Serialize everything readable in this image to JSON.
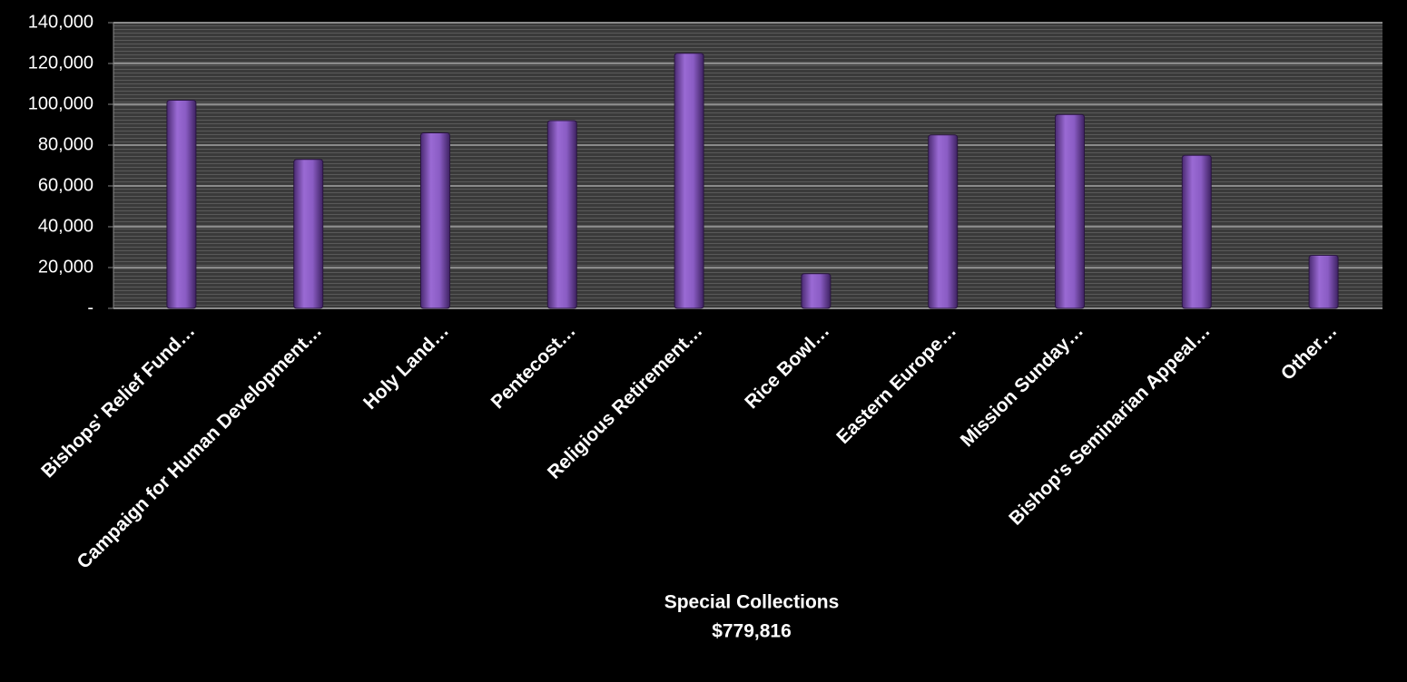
{
  "chart_data": {
    "type": "bar",
    "categories": [
      "Bishops' Relief Fund…",
      "Campaign for Human Development…",
      "Holy Land…",
      "Pentecost…",
      "Religious Retirement…",
      "Rice Bowl…",
      "Eastern Europe…",
      "Mission Sunday…",
      "Bishop's Seminarian Appeal…",
      "Other…"
    ],
    "values": [
      102000,
      73000,
      86000,
      92000,
      125000,
      17000,
      85000,
      95000,
      75000,
      26000
    ],
    "color": "#8a5cc4",
    "ylim": [
      0,
      140000
    ],
    "yticks": [
      {
        "value": 0,
        "label": "-"
      },
      {
        "value": 20000,
        "label": "20,000"
      },
      {
        "value": 40000,
        "label": "40,000"
      },
      {
        "value": 60000,
        "label": "60,000"
      },
      {
        "value": 80000,
        "label": "80,000"
      },
      {
        "value": 100000,
        "label": "100,000"
      },
      {
        "value": 120000,
        "label": "120,000"
      },
      {
        "value": 140000,
        "label": "140,000"
      }
    ],
    "grid": true,
    "xlabel": "Special Collections",
    "annotation": "$779,816"
  }
}
